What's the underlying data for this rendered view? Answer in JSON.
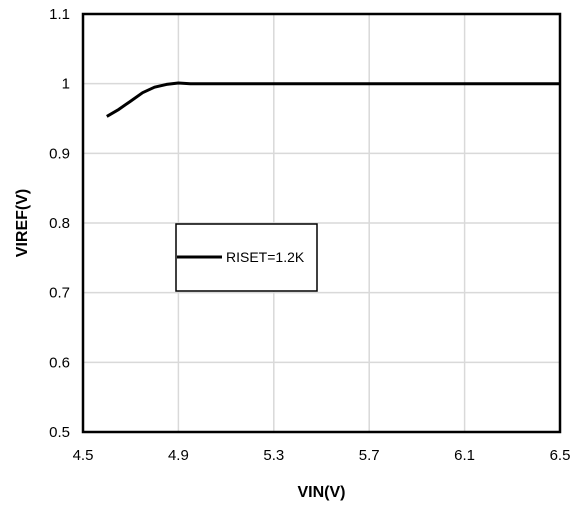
{
  "chart_data": {
    "type": "line",
    "xlabel": "VIN(V)",
    "ylabel": "VIREF(V)",
    "xlim": [
      4.5,
      6.5
    ],
    "ylim": [
      0.5,
      1.1
    ],
    "xticks": [
      "4.5",
      "4.9",
      "5.3",
      "5.7",
      "6.1",
      "6.5"
    ],
    "yticks": [
      "0.5",
      "0.6",
      "0.7",
      "0.8",
      "0.9",
      "1",
      "1.1"
    ],
    "grid": true,
    "legend_position": "center-left",
    "series": [
      {
        "name": "RISET=1.2K",
        "color": "#000000",
        "x": [
          4.6,
          4.65,
          4.7,
          4.75,
          4.8,
          4.85,
          4.9,
          4.95,
          5.0,
          5.5,
          6.0,
          6.5
        ],
        "y": [
          0.953,
          0.963,
          0.975,
          0.987,
          0.995,
          0.999,
          1.001,
          1.0,
          1.0,
          1.0,
          1.0,
          1.0
        ]
      }
    ]
  }
}
